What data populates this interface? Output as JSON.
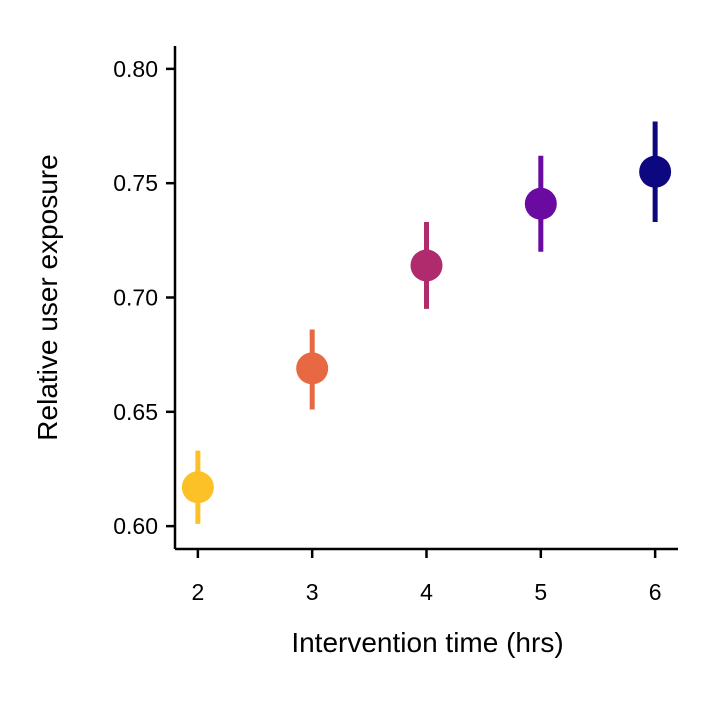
{
  "chart_data": {
    "type": "scatter",
    "title": "",
    "xlabel": "Intervention time (hrs)",
    "ylabel": "Relative user exposure",
    "x_ticks": [
      "2",
      "3",
      "4",
      "5",
      "6"
    ],
    "y_ticks": [
      "0.60",
      "0.65",
      "0.70",
      "0.75",
      "0.80"
    ],
    "xlim": [
      1.8,
      6.2
    ],
    "ylim": [
      0.59,
      0.81
    ],
    "grid": false,
    "points": [
      {
        "x": 2,
        "y": 0.617,
        "err_low": 0.601,
        "err_high": 0.633,
        "color": "#fbc127"
      },
      {
        "x": 3,
        "y": 0.669,
        "err_low": 0.651,
        "err_high": 0.686,
        "color": "#e76843"
      },
      {
        "x": 4,
        "y": 0.714,
        "err_low": 0.695,
        "err_high": 0.733,
        "color": "#b02b6d"
      },
      {
        "x": 5,
        "y": 0.741,
        "err_low": 0.72,
        "err_high": 0.762,
        "color": "#6a0aa0"
      },
      {
        "x": 6,
        "y": 0.755,
        "err_low": 0.733,
        "err_high": 0.777,
        "color": "#0d0880"
      }
    ]
  }
}
